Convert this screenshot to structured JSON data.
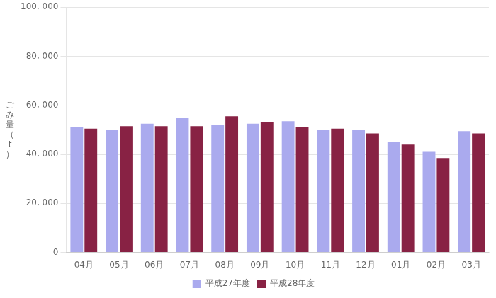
{
  "chart_data": {
    "type": "bar",
    "ylabel": "ご\nみ\n量\n（\nt\n）",
    "categories": [
      "04月",
      "05月",
      "06月",
      "07月",
      "08月",
      "09月",
      "10月",
      "11月",
      "12月",
      "01月",
      "02月",
      "03月"
    ],
    "series": [
      {
        "name": "平成27年度",
        "color": "#aaaaee",
        "values": [
          51000,
          50000,
          52500,
          55000,
          52000,
          52500,
          53500,
          50000,
          50000,
          45000,
          41000,
          49500
        ]
      },
      {
        "name": "平成28年度",
        "color": "#882244",
        "values": [
          50500,
          51500,
          51500,
          51500,
          55500,
          53000,
          51000,
          50500,
          48500,
          44000,
          38500,
          48500
        ]
      }
    ],
    "ylim": [
      0,
      100000
    ],
    "yticks": [
      0,
      {
        "value": 20000,
        "label": "20, 000"
      },
      {
        "value": 40000,
        "label": "40, 000"
      },
      {
        "value": 60000,
        "label": "60, 000"
      },
      {
        "value": 80000,
        "label": "80, 000"
      },
      {
        "value": 100000,
        "label": "100, 000"
      }
    ],
    "grid": true,
    "legend": "bottom"
  }
}
